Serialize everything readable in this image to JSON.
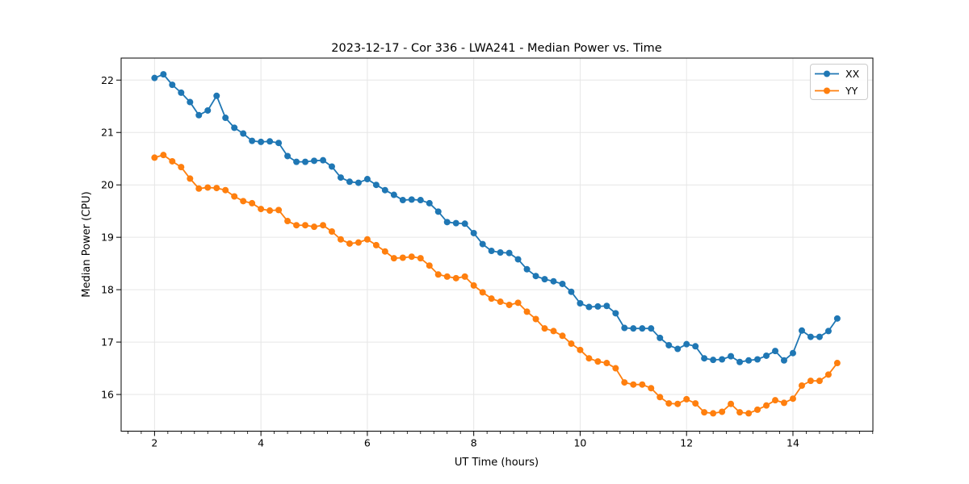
{
  "figure": {
    "title": "2023-12-17 - Cor 336 - LWA241 - Median Power vs. Time",
    "xlabel": "UT Time (hours)",
    "ylabel": "Median Power (CPU)"
  },
  "legend": {
    "entries": [
      "XX",
      "YY"
    ],
    "position": "upper right"
  },
  "colors": {
    "series_xx": "#1f77b4",
    "series_yy": "#ff7f0e",
    "grid": "#e6e6e6",
    "spine": "#000000",
    "background": "#ffffff"
  },
  "chart_data": {
    "type": "line",
    "title": "2023-12-17 - Cor 336 - LWA241 - Median Power vs. Time",
    "xlabel": "UT Time (hours)",
    "ylabel": "Median Power (CPU)",
    "xlim": [
      1.372,
      15.503
    ],
    "ylim": [
      15.3,
      22.42
    ],
    "xticks": [
      2,
      4,
      6,
      8,
      10,
      12,
      14
    ],
    "yticks": [
      16,
      17,
      18,
      19,
      20,
      21,
      22
    ],
    "x_minor_step": 0.25,
    "grid": true,
    "legend_position": "upper right",
    "marker": "circle",
    "x": [
      2,
      2.167,
      2.333,
      2.5,
      2.667,
      2.833,
      3,
      3.167,
      3.333,
      3.5,
      3.667,
      3.833,
      4,
      4.167,
      4.333,
      4.5,
      4.667,
      4.833,
      5,
      5.167,
      5.333,
      5.5,
      5.667,
      5.833,
      6,
      6.167,
      6.333,
      6.5,
      6.667,
      6.833,
      7,
      7.167,
      7.333,
      7.5,
      7.667,
      7.833,
      8,
      8.167,
      8.333,
      8.5,
      8.667,
      8.833,
      9,
      9.167,
      9.333,
      9.5,
      9.667,
      9.833,
      10,
      10.167,
      10.333,
      10.5,
      10.667,
      10.833,
      11,
      11.167,
      11.333,
      11.5,
      11.667,
      11.833,
      12,
      12.167,
      12.333,
      12.5,
      12.667,
      12.833,
      13,
      13.167,
      13.333,
      13.5,
      13.667,
      13.833,
      14,
      14.167,
      14.333,
      14.5,
      14.667,
      14.833
    ],
    "series": [
      {
        "name": "XX",
        "color": "#1f77b4",
        "values": [
          22.04,
          22.11,
          21.91,
          21.76,
          21.58,
          21.33,
          21.42,
          21.7,
          21.28,
          21.09,
          20.98,
          20.84,
          20.82,
          20.83,
          20.8,
          20.55,
          20.44,
          20.44,
          20.46,
          20.47,
          20.35,
          20.14,
          20.06,
          20.04,
          20.11,
          20.0,
          19.9,
          19.81,
          19.71,
          19.72,
          19.71,
          19.65,
          19.49,
          19.29,
          19.27,
          19.26,
          19.08,
          18.87,
          18.74,
          18.71,
          18.7,
          18.58,
          18.39,
          18.26,
          18.2,
          18.16,
          18.11,
          17.96,
          17.74,
          17.67,
          17.68,
          17.69,
          17.55,
          17.27,
          17.26,
          17.26,
          17.26,
          17.08,
          16.94,
          16.87,
          16.96,
          16.92,
          16.69,
          16.66,
          16.67,
          16.73,
          16.62,
          16.65,
          16.67,
          16.74,
          16.83,
          16.65,
          16.79,
          17.22,
          17.1,
          17.1,
          17.21,
          17.45
        ]
      },
      {
        "name": "YY",
        "color": "#ff7f0e",
        "values": [
          20.52,
          20.57,
          20.45,
          20.34,
          20.12,
          19.93,
          19.95,
          19.94,
          19.9,
          19.78,
          19.69,
          19.65,
          19.54,
          19.51,
          19.52,
          19.31,
          19.23,
          19.23,
          19.2,
          19.23,
          19.11,
          18.96,
          18.88,
          18.9,
          18.96,
          18.85,
          18.73,
          18.6,
          18.61,
          18.63,
          18.6,
          18.46,
          18.29,
          18.25,
          18.22,
          18.25,
          18.08,
          17.95,
          17.83,
          17.77,
          17.71,
          17.75,
          17.58,
          17.44,
          17.26,
          17.21,
          17.12,
          16.97,
          16.85,
          16.69,
          16.63,
          16.6,
          16.5,
          16.23,
          16.19,
          16.19,
          16.12,
          15.95,
          15.83,
          15.82,
          15.91,
          15.83,
          15.66,
          15.64,
          15.67,
          15.82,
          15.66,
          15.64,
          15.71,
          15.79,
          15.89,
          15.84,
          15.92,
          16.17,
          16.26,
          16.26,
          16.38,
          16.6
        ]
      }
    ]
  }
}
